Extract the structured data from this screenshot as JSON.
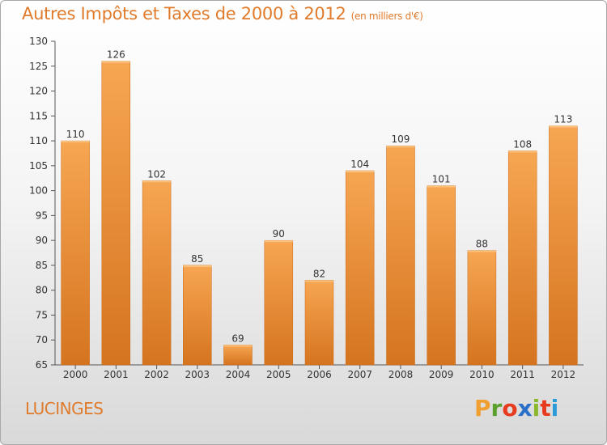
{
  "header": {
    "title": "Autres Impôts et Taxes de 2000 à 2012",
    "unit": "(en milliers d'€)"
  },
  "footer": {
    "place": "LUCINGES",
    "logo_text": "Proxiti"
  },
  "colors": {
    "bar_light": "#f7a652",
    "bar_dark": "#d5741f",
    "title": "#e07b2c",
    "logo_letters": [
      "#f0a030",
      "#5aa02c",
      "#e83a1e",
      "#2a6fc8",
      "#8ab82a",
      "#e83a1e",
      "#2a9ad8"
    ]
  },
  "chart_data": {
    "type": "bar",
    "title": "Autres Impôts et Taxes de 2000 à 2012",
    "subtitle": "(en milliers d'€)",
    "xlabel": "",
    "ylabel": "",
    "categories": [
      "2000",
      "2001",
      "2002",
      "2003",
      "2004",
      "2005",
      "2006",
      "2007",
      "2008",
      "2009",
      "2010",
      "2011",
      "2012"
    ],
    "values": [
      110,
      126,
      102,
      85,
      69,
      90,
      82,
      104,
      109,
      101,
      88,
      108,
      113
    ],
    "ylim": [
      65,
      130
    ],
    "yticks": [
      65,
      70,
      75,
      80,
      85,
      90,
      95,
      100,
      105,
      110,
      115,
      120,
      125,
      130
    ],
    "grid": false,
    "legend": "none"
  }
}
